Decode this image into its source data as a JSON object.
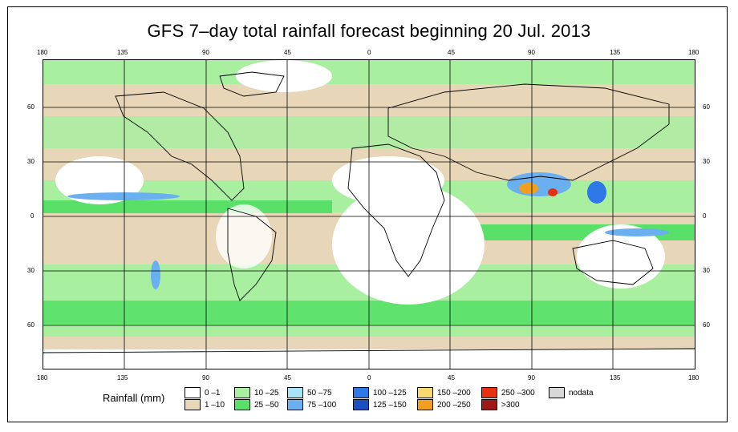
{
  "title": "GFS 7–day total rainfall forecast beginning 20 Jul. 2013",
  "axes": {
    "lon_labels": [
      "180",
      "135",
      "90",
      "45",
      "0",
      "45",
      "90",
      "135",
      "180"
    ],
    "lat_labels": [
      "60",
      "30",
      "0",
      "30",
      "60"
    ]
  },
  "legend": {
    "title": "Rainfall (mm)",
    "items": [
      {
        "label": "0 –1",
        "color": "#ffffff"
      },
      {
        "label": "1 –10",
        "color": "#e8d6b8"
      },
      {
        "label": "10 –25",
        "color": "#a8f0a0"
      },
      {
        "label": "25 –50",
        "color": "#58e068"
      },
      {
        "label": "50 –75",
        "color": "#a8e4f8"
      },
      {
        "label": "75 –100",
        "color": "#6aaff0"
      },
      {
        "label": "100 –125",
        "color": "#2f78e8"
      },
      {
        "label": "125 –150",
        "color": "#1c50c0"
      },
      {
        "label": "150 –200",
        "color": "#f8d870"
      },
      {
        "label": "200 –250",
        "color": "#f0a020"
      },
      {
        "label": "250 –300",
        "color": "#e83010"
      },
      {
        "label": ">300",
        "color": "#a01818"
      },
      {
        "label": "nodata",
        "color": "#d8d8d8"
      }
    ]
  }
}
